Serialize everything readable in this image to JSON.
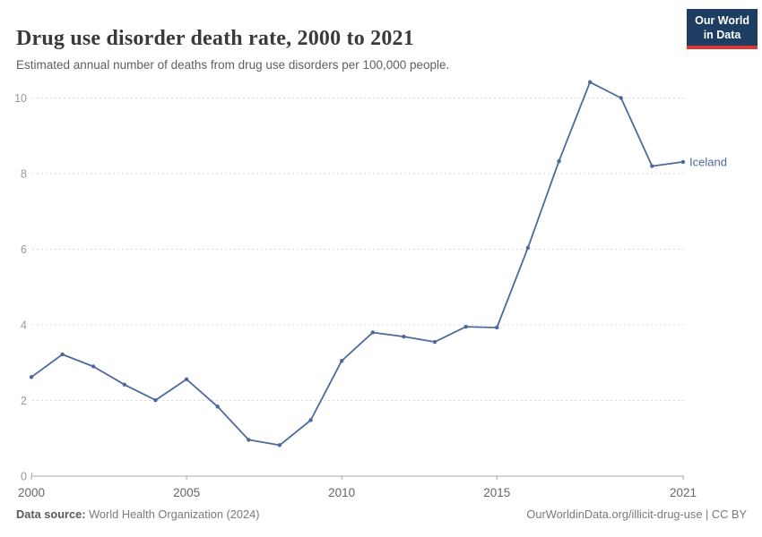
{
  "header": {
    "title": "Drug use disorder death rate, 2000 to 2021",
    "subtitle": "Estimated annual number of deaths from drug use disorders per 100,000 people.",
    "logo": {
      "line1": "Our World",
      "line2": "in Data"
    }
  },
  "chart_data": {
    "type": "line",
    "title": "Drug use disorder death rate, 2000 to 2021",
    "xlabel": "",
    "ylabel": "",
    "xlim": [
      2000,
      2021
    ],
    "ylim": [
      0,
      10.5
    ],
    "grid": true,
    "legend_position": "end-of-line-label",
    "x_ticks": [
      2000,
      2005,
      2010,
      2015,
      2021
    ],
    "y_ticks": [
      0,
      2,
      4,
      6,
      8,
      10
    ],
    "x": [
      2000,
      2001,
      2002,
      2003,
      2004,
      2005,
      2006,
      2007,
      2008,
      2009,
      2010,
      2011,
      2012,
      2013,
      2014,
      2015,
      2016,
      2017,
      2018,
      2019,
      2020,
      2021
    ],
    "series": [
      {
        "name": "Iceland",
        "color": "#4C6A9C",
        "values": [
          2.62,
          3.22,
          2.9,
          2.42,
          2.01,
          2.56,
          1.84,
          0.96,
          0.82,
          1.48,
          3.05,
          3.8,
          3.69,
          3.55,
          3.95,
          3.93,
          6.04,
          8.33,
          10.42,
          10.0,
          8.2,
          8.31
        ]
      }
    ],
    "colors": {
      "gridline": "#d9d9d9",
      "axis": "#a8a8a8",
      "y_tick_label": "#999999",
      "x_tick_label": "#666666"
    }
  },
  "footer": {
    "source_label": "Data source:",
    "source_value": " World Health Organization (2024)",
    "right_text": "OurWorldinData.org/illicit-drug-use | CC BY"
  }
}
